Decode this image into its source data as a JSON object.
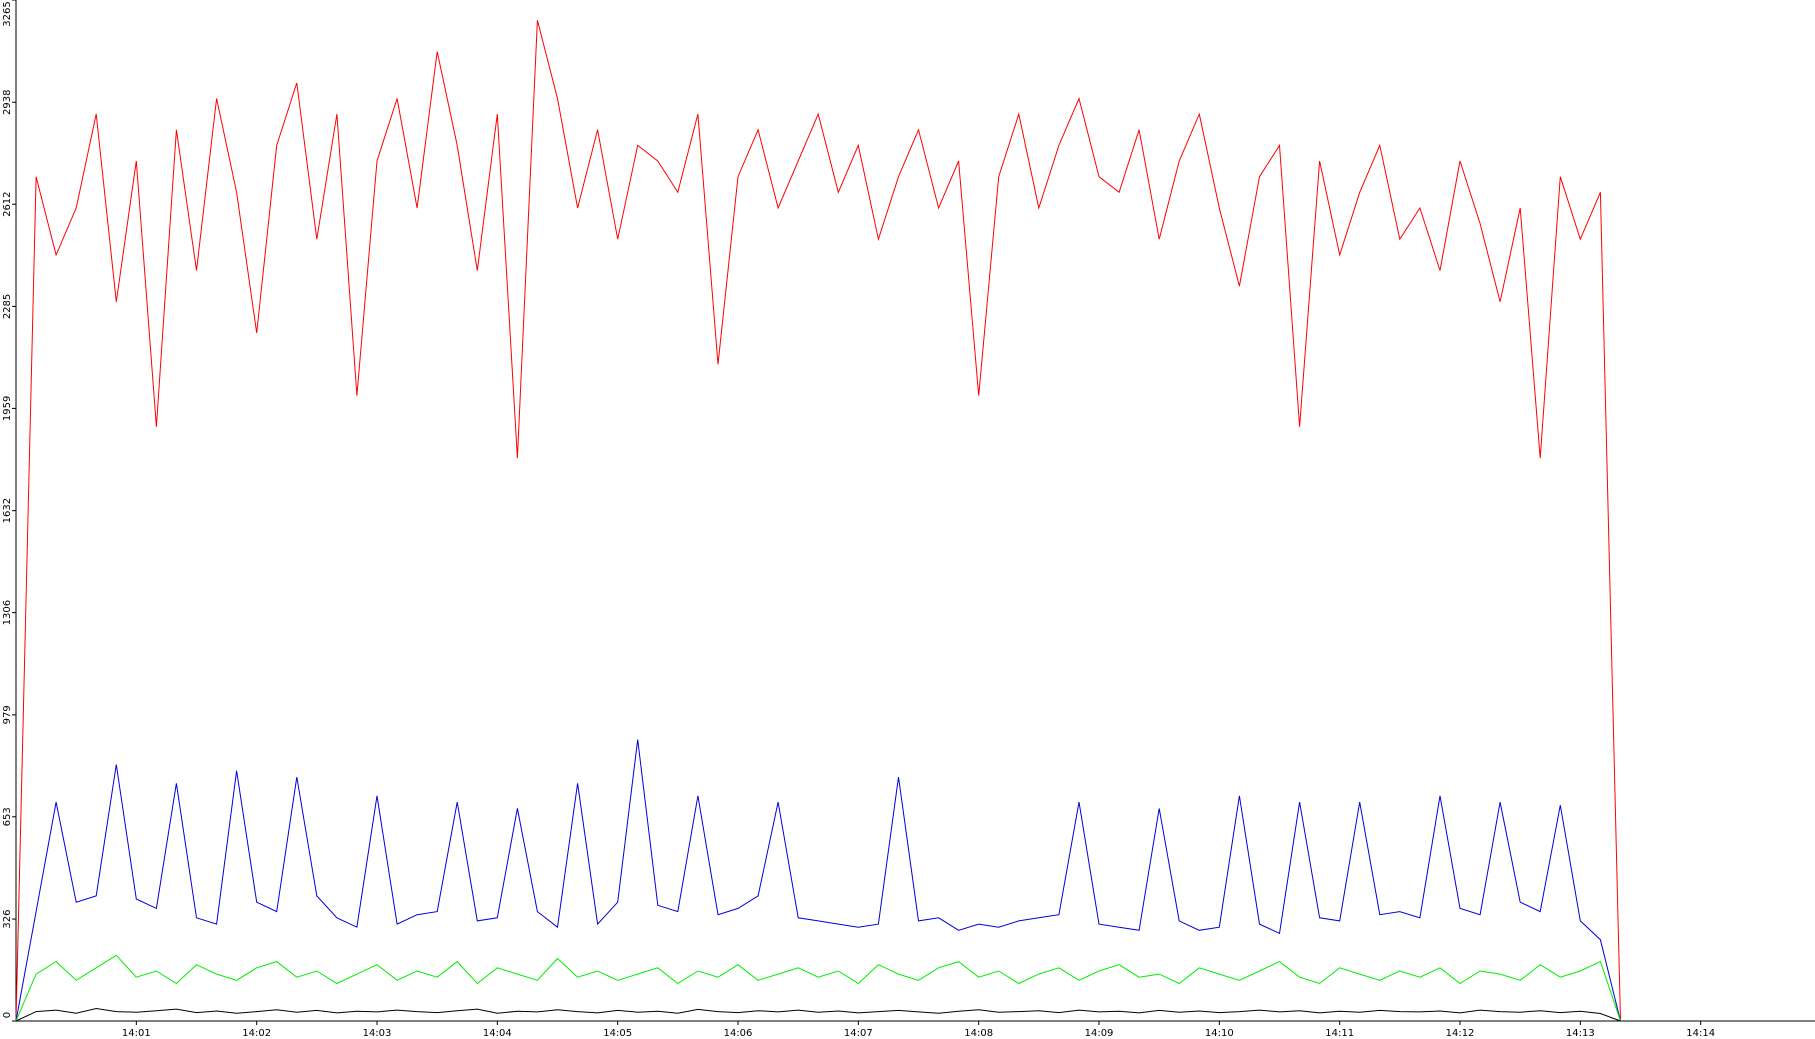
{
  "chart_data": {
    "type": "line",
    "x": [
      "14:00:00",
      "14:00:10",
      "14:00:20",
      "14:00:30",
      "14:00:40",
      "14:00:50",
      "14:01:00",
      "14:01:10",
      "14:01:20",
      "14:01:30",
      "14:01:40",
      "14:01:50",
      "14:02:00",
      "14:02:10",
      "14:02:20",
      "14:02:30",
      "14:02:40",
      "14:02:50",
      "14:03:00",
      "14:03:10",
      "14:03:20",
      "14:03:30",
      "14:03:40",
      "14:03:50",
      "14:04:00",
      "14:04:10",
      "14:04:20",
      "14:04:30",
      "14:04:40",
      "14:04:50",
      "14:05:00",
      "14:05:10",
      "14:05:20",
      "14:05:30",
      "14:05:40",
      "14:05:50",
      "14:06:00",
      "14:06:10",
      "14:06:20",
      "14:06:30",
      "14:06:40",
      "14:06:50",
      "14:07:00",
      "14:07:10",
      "14:07:20",
      "14:07:30",
      "14:07:40",
      "14:07:50",
      "14:08:00",
      "14:08:10",
      "14:08:20",
      "14:08:30",
      "14:08:40",
      "14:08:50",
      "14:09:00",
      "14:09:10",
      "14:09:20",
      "14:09:30",
      "14:09:40",
      "14:09:50",
      "14:10:00",
      "14:10:10",
      "14:10:20",
      "14:10:30",
      "14:10:40",
      "14:10:50",
      "14:11:00",
      "14:11:10",
      "14:11:20",
      "14:11:30",
      "14:11:40",
      "14:11:50",
      "14:12:00",
      "14:12:10",
      "14:12:20",
      "14:12:30",
      "14:12:40",
      "14:12:50",
      "14:13:00",
      "14:13:10",
      "14:13:20"
    ],
    "series": [
      {
        "color": "#ff0000",
        "values": [
          0,
          2700,
          2450,
          2600,
          2900,
          2300,
          2750,
          1900,
          2850,
          2400,
          2950,
          2650,
          2200,
          2800,
          3000,
          2500,
          2900,
          2000,
          2750,
          2950,
          2600,
          3100,
          2800,
          2400,
          2900,
          1800,
          3200,
          2950,
          2600,
          2850,
          2500,
          2800,
          2750,
          2650,
          2900,
          2100,
          2700,
          2850,
          2600,
          2750,
          2900,
          2650,
          2800,
          2500,
          2700,
          2850,
          2600,
          2750,
          2000,
          2700,
          2900,
          2600,
          2800,
          2950,
          2700,
          2650,
          2850,
          2500,
          2750,
          2900,
          2600,
          2350,
          2700,
          2800,
          1900,
          2750,
          2450,
          2650,
          2800,
          2500,
          2600,
          2400,
          2750,
          2550,
          2300,
          2600,
          1800,
          2700,
          2500,
          2650,
          0
        ]
      },
      {
        "color": "#0000dd",
        "values": [
          0,
          350,
          700,
          380,
          400,
          820,
          390,
          360,
          760,
          330,
          310,
          800,
          380,
          350,
          780,
          400,
          330,
          300,
          720,
          310,
          340,
          350,
          700,
          320,
          330,
          680,
          350,
          300,
          760,
          310,
          380,
          900,
          370,
          350,
          720,
          340,
          360,
          400,
          700,
          330,
          320,
          310,
          300,
          310,
          780,
          320,
          330,
          290,
          310,
          300,
          320,
          330,
          340,
          700,
          310,
          300,
          290,
          680,
          320,
          290,
          300,
          720,
          310,
          280,
          700,
          330,
          320,
          700,
          340,
          350,
          330,
          720,
          360,
          340,
          700,
          380,
          350,
          690,
          320,
          260,
          0
        ]
      },
      {
        "color": "#00ee00",
        "values": [
          0,
          150,
          190,
          130,
          170,
          210,
          140,
          160,
          120,
          180,
          150,
          130,
          170,
          190,
          140,
          160,
          120,
          150,
          180,
          130,
          160,
          140,
          190,
          120,
          170,
          150,
          130,
          200,
          140,
          160,
          130,
          150,
          170,
          120,
          160,
          140,
          180,
          130,
          150,
          170,
          140,
          160,
          120,
          180,
          150,
          130,
          170,
          190,
          140,
          160,
          120,
          150,
          170,
          130,
          160,
          180,
          140,
          150,
          120,
          170,
          150,
          130,
          160,
          190,
          140,
          120,
          170,
          150,
          130,
          160,
          140,
          170,
          120,
          160,
          150,
          130,
          180,
          140,
          160,
          190,
          0
        ]
      },
      {
        "color": "#000000",
        "values": [
          0,
          30,
          35,
          25,
          40,
          30,
          28,
          33,
          38,
          27,
          32,
          25,
          30,
          36,
          28,
          34,
          26,
          31,
          29,
          35,
          30,
          27,
          33,
          38,
          25,
          31,
          29,
          36,
          30,
          26,
          34,
          28,
          31,
          25,
          37,
          30,
          27,
          33,
          29,
          35,
          28,
          32,
          26,
          30,
          34,
          29,
          25,
          31,
          36,
          28,
          30,
          33,
          27,
          35,
          29,
          31,
          26,
          34,
          28,
          32,
          27,
          30,
          35,
          29,
          33,
          26,
          31,
          28,
          34,
          30,
          29,
          32,
          26,
          35,
          30,
          28,
          33,
          27,
          31,
          24,
          0
        ]
      }
    ],
    "xlim": [
      "14:00:00",
      "14:14:57"
    ],
    "xticks": [
      "14:01",
      "14:02",
      "14:03",
      "14:04",
      "14:05",
      "14:06",
      "14:07",
      "14:08",
      "14:09",
      "14:10",
      "14:11",
      "14:12",
      "14:13",
      "14:14"
    ],
    "ylim": [
      0,
      3265
    ],
    "yticks": [
      0,
      326,
      653,
      979,
      1306,
      1632,
      1959,
      2285,
      2612,
      2938,
      3265
    ]
  }
}
